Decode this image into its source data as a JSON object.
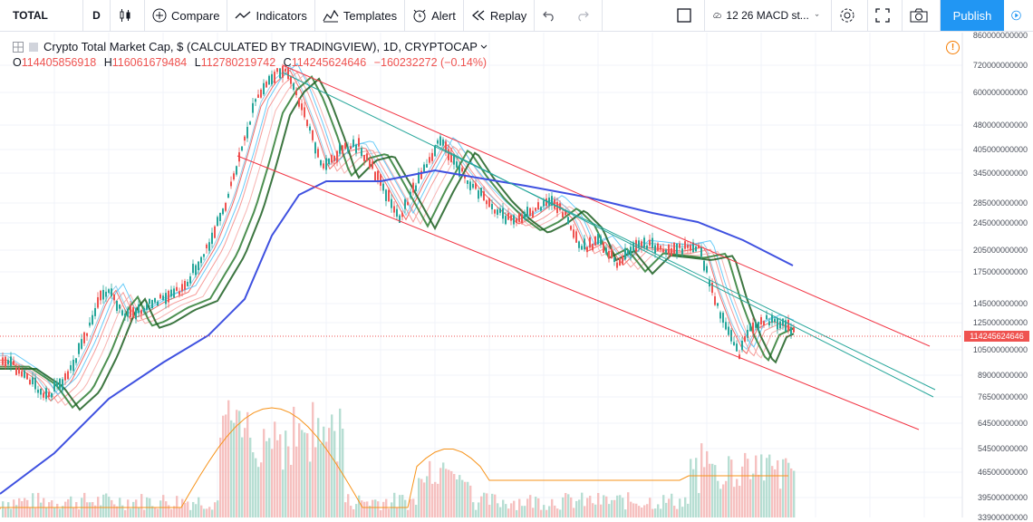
{
  "toolbar": {
    "symbol": "TOTAL",
    "interval": "D",
    "compare": "Compare",
    "indicators": "Indicators",
    "templates": "Templates",
    "alert": "Alert",
    "replay": "Replay",
    "layout_name": "12 26 MACD st...",
    "publish": "Publish"
  },
  "legend": {
    "title": "Crypto Total Market Cap, $ (CALCULATED BY TRADINGVIEW), 1D, CRYPTOCAP",
    "open_label": "O",
    "open": "114405856918",
    "high_label": "H",
    "high": "116061679484",
    "low_label": "L",
    "low": "112780219742",
    "close_label": "C",
    "close": "114245624646",
    "change": "−160232272 (−0.14%)"
  },
  "price_axis": {
    "ticks": [
      "860000000000",
      "720000000000",
      "600000000000",
      "480000000000",
      "405000000000",
      "345000000000",
      "285000000000",
      "245000000000",
      "205000000000",
      "175000000000",
      "145000000000",
      "125000000000",
      "105000000000",
      "89000000000",
      "76500000000",
      "64500000000",
      "54500000000",
      "46500000000",
      "39500000000",
      "33900000000"
    ],
    "last_price": "114245624646"
  },
  "colors": {
    "up": "#26a69a",
    "down": "#ef5350",
    "ma200": "#3f51e0",
    "channel_red": "#f23645",
    "channel_teal": "#26a69a",
    "accent": "#2196f3"
  },
  "chart_data": {
    "type": "line",
    "series": [],
    "volume_ma_color": "#f7931a"
  }
}
